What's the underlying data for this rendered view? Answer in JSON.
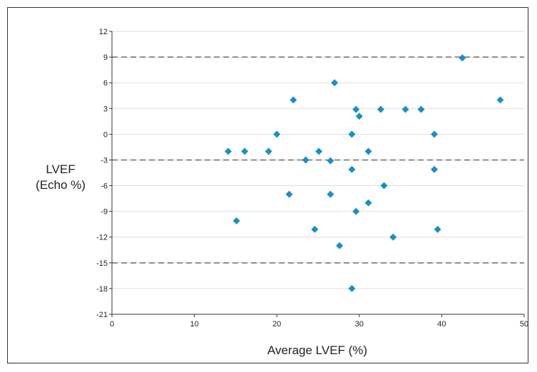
{
  "chart_data": {
    "type": "scatter",
    "xlabel": "Average LVEF (%)",
    "ylabel_lines": [
      "LVEF",
      "(Echo %)"
    ],
    "xlim": [
      0,
      50
    ],
    "ylim": [
      -21,
      12
    ],
    "x_ticks": [
      0,
      10,
      20,
      30,
      40,
      50
    ],
    "y_ticks": [
      12,
      9,
      6,
      3,
      0,
      -3,
      -6,
      -9,
      -12,
      -15,
      -18,
      -21
    ],
    "grid": true,
    "reference_lines": [
      9,
      -3,
      -15
    ],
    "marker_color": "#1a8fc9",
    "grid_color": "#dedede",
    "reference_line_color": "#8c8c8c",
    "points": [
      {
        "x": 14.1,
        "y": -2
      },
      {
        "x": 15.1,
        "y": -10.1
      },
      {
        "x": 16.1,
        "y": -2
      },
      {
        "x": 19.0,
        "y": -2
      },
      {
        "x": 20.0,
        "y": 0
      },
      {
        "x": 21.5,
        "y": -7
      },
      {
        "x": 22.0,
        "y": 4
      },
      {
        "x": 23.5,
        "y": -3
      },
      {
        "x": 24.6,
        "y": -11.1
      },
      {
        "x": 25.1,
        "y": -2
      },
      {
        "x": 26.5,
        "y": -3.1
      },
      {
        "x": 26.5,
        "y": -7
      },
      {
        "x": 27.0,
        "y": 6
      },
      {
        "x": 27.6,
        "y": -13
      },
      {
        "x": 29.1,
        "y": 0
      },
      {
        "x": 29.1,
        "y": -4.1
      },
      {
        "x": 29.1,
        "y": -18
      },
      {
        "x": 29.6,
        "y": 2.9
      },
      {
        "x": 29.6,
        "y": -9
      },
      {
        "x": 30.0,
        "y": 2.1
      },
      {
        "x": 31.1,
        "y": -2
      },
      {
        "x": 31.1,
        "y": -8
      },
      {
        "x": 32.6,
        "y": 2.9
      },
      {
        "x": 33.0,
        "y": -6
      },
      {
        "x": 34.1,
        "y": -12
      },
      {
        "x": 35.6,
        "y": 2.9
      },
      {
        "x": 37.5,
        "y": 2.9
      },
      {
        "x": 39.1,
        "y": 0
      },
      {
        "x": 39.1,
        "y": -4.1
      },
      {
        "x": 39.5,
        "y": -11.1
      },
      {
        "x": 42.5,
        "y": 8.9
      },
      {
        "x": 47.1,
        "y": 4
      }
    ]
  }
}
